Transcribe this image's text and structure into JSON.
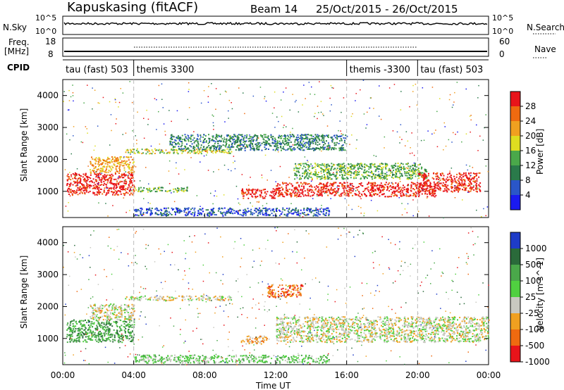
{
  "header": {
    "station": "Kapuskasing (fitACF)",
    "beam": "Beam 14",
    "date_range": "25/Oct/2015 - 26/Oct/2015"
  },
  "noise_panel": {
    "left_label": "N.Sky",
    "right_label": "N.Search",
    "left_ticks": [
      "10^5",
      "10^0"
    ],
    "right_ticks": [
      "10^5",
      "10^0"
    ]
  },
  "freq_panel": {
    "left_label_line1": "Freq.",
    "left_label_line2": "[MHz]",
    "right_label": "Nave",
    "left_ticks": [
      "18",
      "8"
    ],
    "right_ticks": [
      "60",
      "0"
    ]
  },
  "cpid": {
    "label": "CPID",
    "segments": [
      {
        "name": "tau (fast) 503",
        "start_h": 0,
        "end_h": 4
      },
      {
        "name": "themis 3300",
        "start_h": 4,
        "end_h": 16
      },
      {
        "name": "themis -3300",
        "start_h": 16,
        "end_h": 20
      },
      {
        "name": "tau (fast) 503",
        "start_h": 20,
        "end_h": 24
      }
    ]
  },
  "chart_data": [
    {
      "type": "heatmap",
      "panel": "power",
      "ylabel": "Slant Range [km]",
      "ylim": [
        180,
        4500
      ],
      "yticks": [
        1000,
        2000,
        3000,
        4000
      ],
      "colorbar_label": "Power [dB]",
      "colorbar_ticks": [
        "4",
        "8",
        "12",
        "16",
        "20",
        "24",
        "28"
      ],
      "colors": [
        "#1a1af0",
        "#2a56c8",
        "#2a7a4a",
        "#4aa84a",
        "#dede20",
        "#f0a020",
        "#ef6a10",
        "#e8141a"
      ],
      "bands": [
        {
          "start_h": 0.2,
          "end_h": 4.0,
          "range_km": [
            900,
            1600
          ],
          "level": 7
        },
        {
          "start_h": 1.5,
          "end_h": 4.0,
          "range_km": [
            1600,
            2100
          ],
          "level": 5
        },
        {
          "start_h": 3.5,
          "end_h": 9.5,
          "range_km": [
            2200,
            2350
          ],
          "level": 4
        },
        {
          "start_h": 4.0,
          "end_h": 7.0,
          "range_km": [
            1000,
            1150
          ],
          "level": 3
        },
        {
          "start_h": 10.0,
          "end_h": 12.0,
          "range_km": [
            800,
            1100
          ],
          "level": 7
        },
        {
          "start_h": 12.0,
          "end_h": 21.0,
          "range_km": [
            850,
            1300
          ],
          "level": 7
        },
        {
          "start_h": 13.0,
          "end_h": 20.5,
          "range_km": [
            1400,
            1900
          ],
          "level": 3
        },
        {
          "start_h": 6.0,
          "end_h": 16.0,
          "range_km": [
            2300,
            2800
          ],
          "level": 2
        },
        {
          "start_h": 20.0,
          "end_h": 23.5,
          "range_km": [
            1000,
            1600
          ],
          "level": 7
        },
        {
          "start_h": 4.0,
          "end_h": 15.0,
          "range_km": [
            250,
            500
          ],
          "level": 1
        }
      ]
    },
    {
      "type": "heatmap",
      "panel": "velocity",
      "ylabel": "Slant Range [km]",
      "ylim": [
        180,
        4500
      ],
      "yticks": [
        1000,
        2000,
        3000,
        4000
      ],
      "colorbar_label": "Velocity [m s^-1]",
      "colorbar_ticks": [
        "1000",
        "500",
        "100",
        "25",
        "-25",
        "-100",
        "-500",
        "-1000"
      ],
      "colors": [
        "#1e3cc8",
        "#2a6a3a",
        "#4aa84a",
        "#50d040",
        "#c8c8c0",
        "#f0a020",
        "#ef6a10",
        "#e8141a"
      ],
      "bands": [
        {
          "start_h": 0.2,
          "end_h": 4.0,
          "range_km": [
            900,
            1600
          ],
          "level": 2
        },
        {
          "start_h": 1.5,
          "end_h": 4.0,
          "range_km": [
            1600,
            2100
          ],
          "level": 4
        },
        {
          "start_h": 3.5,
          "end_h": 9.5,
          "range_km": [
            2200,
            2350
          ],
          "level": 4
        },
        {
          "start_h": 10.0,
          "end_h": 11.5,
          "range_km": [
            850,
            1100
          ],
          "level": 5
        },
        {
          "start_h": 12.0,
          "end_h": 24.0,
          "range_km": [
            900,
            1700
          ],
          "level": 4
        },
        {
          "start_h": 11.5,
          "end_h": 13.5,
          "range_km": [
            2300,
            2700
          ],
          "level": 6
        },
        {
          "start_h": 4.0,
          "end_h": 15.0,
          "range_km": [
            250,
            500
          ],
          "level": 3
        }
      ]
    }
  ],
  "xaxis": {
    "label": "Time UT",
    "ticks": [
      "00:00",
      "04:00",
      "08:00",
      "12:00",
      "16:00",
      "20:00",
      "00:00"
    ]
  }
}
